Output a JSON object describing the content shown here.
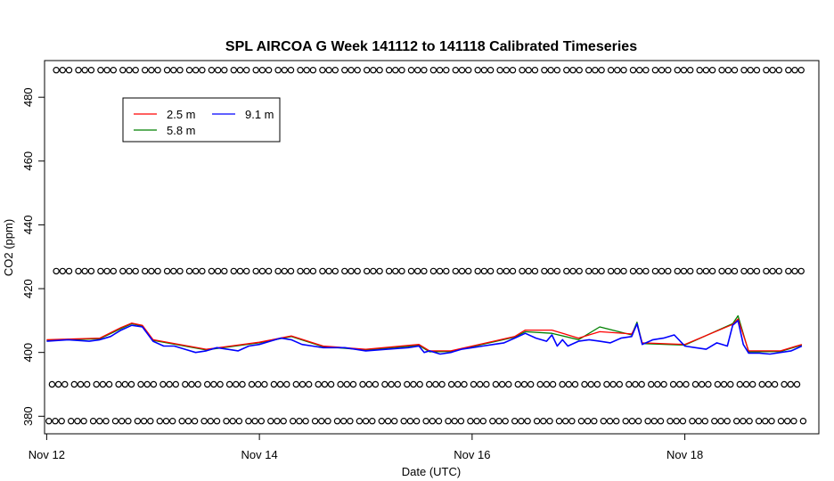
{
  "chart_data": {
    "type": "line",
    "title": "SPL AIRCOA G  Week 141112 to 141118  Calibrated Timeseries",
    "xlabel": "Date (UTC)",
    "ylabel": "CO2 (ppm)",
    "x_ticks": [
      "Nov 12",
      "Nov 14",
      "Nov 16",
      "Nov 18"
    ],
    "x_tick_days": [
      12,
      14,
      16,
      18
    ],
    "xlim": [
      11.98,
      19.26
    ],
    "ylim": [
      374.5,
      491.5
    ],
    "y_ticks": [
      380,
      400,
      420,
      440,
      460,
      480
    ],
    "grid": false,
    "legend_position": "top-left",
    "legend": [
      {
        "label": "2.5 m",
        "color": "#ff0000"
      },
      {
        "label": "5.8 m",
        "color": "#008000"
      },
      {
        "label": "9.1 m",
        "color": "#0000ff"
      }
    ],
    "calibration_levels": [
      {
        "y": 488.5,
        "x_start": 12.09,
        "x_end": 19.12
      },
      {
        "y": 425.5,
        "x_start": 12.09,
        "x_end": 19.12
      },
      {
        "y": 390.0,
        "x_start": 12.05,
        "x_end": 19.12
      },
      {
        "y": 378.5,
        "x_start": 12.02,
        "x_end": 19.12
      }
    ],
    "series": [
      {
        "name": "9.1 m",
        "color": "#0000ff",
        "x": [
          12.0,
          12.2,
          12.4,
          12.5,
          12.6,
          12.7,
          12.8,
          12.9,
          13.0,
          13.1,
          13.2,
          13.3,
          13.4,
          13.5,
          13.6,
          13.7,
          13.8,
          13.9,
          14.0,
          14.1,
          14.2,
          14.3,
          14.4,
          14.5,
          14.6,
          14.7,
          14.8,
          14.9,
          15.0,
          15.2,
          15.4,
          15.5,
          15.55,
          15.6,
          15.7,
          15.8,
          15.9,
          16.0,
          16.1,
          16.2,
          16.3,
          16.4,
          16.5,
          16.6,
          16.7,
          16.75,
          16.8,
          16.85,
          16.9,
          17.0,
          17.1,
          17.2,
          17.3,
          17.4,
          17.5,
          17.55,
          17.6,
          17.7,
          17.8,
          17.9,
          18.0,
          18.1,
          18.2,
          18.3,
          18.4,
          18.45,
          18.5,
          18.55,
          18.6,
          18.7,
          18.8,
          18.9,
          19.0,
          19.1
        ],
        "y": [
          403.5,
          404.0,
          403.5,
          404.0,
          405.0,
          407.0,
          408.5,
          408.0,
          403.5,
          402.0,
          402.0,
          401.0,
          400.0,
          400.5,
          401.5,
          401.0,
          400.5,
          402.0,
          402.5,
          403.5,
          404.5,
          404.0,
          402.5,
          402.0,
          401.5,
          401.5,
          401.5,
          401.0,
          400.5,
          401.0,
          401.5,
          402.0,
          400.0,
          400.5,
          399.5,
          400.0,
          401.0,
          401.5,
          402.0,
          402.5,
          403.0,
          404.5,
          406.0,
          404.5,
          403.5,
          405.5,
          402.0,
          404.0,
          402.0,
          403.5,
          404.0,
          403.5,
          403.0,
          404.5,
          405.0,
          409.0,
          402.5,
          404.0,
          404.5,
          405.5,
          402.0,
          401.5,
          401.0,
          403.0,
          402.0,
          408.5,
          410.0,
          402.5,
          399.8,
          399.8,
          399.5,
          400.0,
          400.5,
          402.0
        ]
      },
      {
        "name": "5.8 m",
        "color": "#008000",
        "x": [
          12.0,
          12.5,
          12.7,
          12.8,
          12.9,
          13.0,
          13.5,
          14.0,
          14.3,
          14.6,
          15.0,
          15.5,
          15.6,
          15.8,
          16.0,
          16.4,
          16.5,
          16.75,
          17.0,
          17.2,
          17.5,
          17.55,
          17.6,
          18.0,
          18.45,
          18.5,
          18.6,
          18.9,
          19.1
        ],
        "y": [
          403.8,
          404.3,
          407.5,
          409.0,
          408.3,
          403.8,
          400.8,
          403.0,
          405.0,
          401.8,
          400.8,
          402.2,
          400.2,
          400.3,
          401.8,
          404.8,
          406.5,
          406.0,
          404.0,
          408.0,
          405.5,
          409.5,
          402.8,
          402.3,
          409.0,
          411.5,
          400.2,
          400.3,
          402.3
        ]
      },
      {
        "name": "2.5 m",
        "color": "#ff0000",
        "x": [
          12.0,
          12.5,
          12.7,
          12.8,
          12.9,
          13.0,
          13.5,
          14.0,
          14.3,
          14.6,
          15.0,
          15.5,
          15.6,
          15.8,
          16.0,
          16.4,
          16.5,
          16.75,
          17.0,
          17.2,
          17.5,
          17.55,
          17.6,
          18.0,
          18.45,
          18.5,
          18.6,
          18.9,
          19.1
        ],
        "y": [
          404.0,
          404.5,
          407.8,
          409.2,
          408.5,
          404.0,
          401.0,
          403.2,
          405.2,
          402.0,
          401.0,
          402.5,
          400.5,
          400.5,
          402.0,
          405.0,
          407.0,
          407.0,
          404.5,
          406.5,
          405.8,
          408.8,
          403.0,
          402.5,
          408.8,
          410.5,
          400.5,
          400.5,
          402.5
        ]
      }
    ]
  }
}
